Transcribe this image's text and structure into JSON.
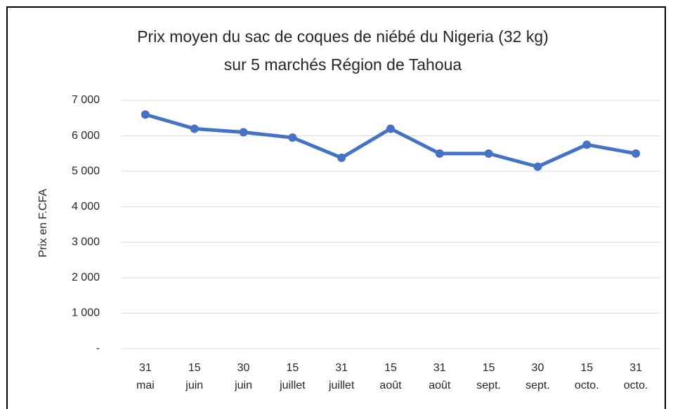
{
  "chart_data": {
    "type": "line",
    "title": [
      "Prix moyen du sac de coques de niébé du Nigeria (32 kg)",
      "sur 5 marchés Région de Tahoua"
    ],
    "y_label": "Prix en F.CFA",
    "categories": [
      [
        "31",
        "mai"
      ],
      [
        "15",
        "juin"
      ],
      [
        "30",
        "juin"
      ],
      [
        "15",
        "juillet"
      ],
      [
        "31",
        "juillet"
      ],
      [
        "15",
        "août"
      ],
      [
        "31",
        "août"
      ],
      [
        "15",
        "sept."
      ],
      [
        "30",
        "sept."
      ],
      [
        "15",
        "octo."
      ],
      [
        "31",
        "octo."
      ]
    ],
    "values": [
      6600,
      6200,
      6100,
      5950,
      5380,
      6200,
      5500,
      5500,
      5130,
      5750,
      5500
    ],
    "color": "#4472c4",
    "ylim": [
      0,
      7000
    ],
    "yticks": [
      {
        "value": 0,
        "label": "-"
      },
      {
        "value": 1000,
        "label": "1 000"
      },
      {
        "value": 2000,
        "label": "2 000"
      },
      {
        "value": 3000,
        "label": "3 000"
      },
      {
        "value": 4000,
        "label": "4 000"
      },
      {
        "value": 5000,
        "label": "5 000"
      },
      {
        "value": 6000,
        "label": "6 000"
      },
      {
        "value": 7000,
        "label": "7 000"
      }
    ],
    "grid": true
  }
}
